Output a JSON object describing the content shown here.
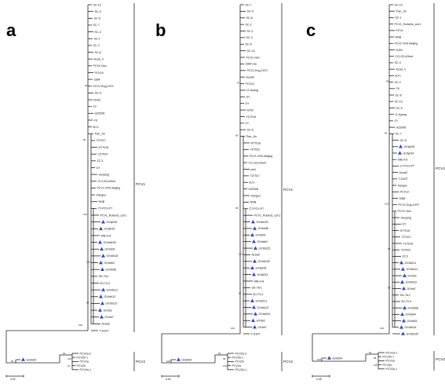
{
  "panels": [
    {
      "label": "a",
      "scale": "0.02",
      "clade_pcv1": "PCV1",
      "clade_pcv2": "PCV2",
      "leaves": [
        {
          "t": "SC-10",
          "m": false
        },
        {
          "t": "SC-9",
          "m": false
        },
        {
          "t": "SC-8",
          "m": false
        },
        {
          "t": "SC-7",
          "m": false
        },
        {
          "t": "SC-3",
          "m": false
        },
        {
          "t": "SC-1",
          "m": false
        },
        {
          "t": "SC-2",
          "m": false
        },
        {
          "t": "SC-6",
          "m": false
        },
        {
          "t": "Azad_4",
          "m": false
        },
        {
          "t": "PCV1-Hun",
          "m": false
        },
        {
          "t": "PCV10",
          "m": false
        },
        {
          "t": "3384",
          "m": false
        },
        {
          "t": "PCV1-Eng-1970",
          "m": false
        },
        {
          "t": "SC-5",
          "m": false
        },
        {
          "t": "NJ03",
          "m": false
        },
        {
          "t": "ZY",
          "m": false
        },
        {
          "t": "HZ2008",
          "m": false
        },
        {
          "t": "FK",
          "m": false
        },
        {
          "t": "BJ-1",
          "m": false
        },
        {
          "t": "Tian_Jin",
          "m": false
        },
        {
          "t": "TZ7017",
          "m": false
        },
        {
          "t": "NT7016",
          "m": false
        },
        {
          "t": "YZ7020",
          "m": false
        },
        {
          "t": "ZZ-3",
          "m": false
        },
        {
          "t": "DY",
          "m": false
        },
        {
          "t": "Guiyang",
          "m": false
        },
        {
          "t": "CCL33-UGent",
          "m": false
        },
        {
          "t": "PCV1-XFD-Beijing",
          "m": false
        },
        {
          "t": "Jiangsu",
          "m": false
        },
        {
          "t": "NNB",
          "m": false
        },
        {
          "t": "CT-PCV-P7",
          "m": false
        },
        {
          "t": "PCV1_Roberts_con1",
          "m": false
        },
        {
          "t": "GXly028",
          "m": true
        },
        {
          "t": "GXly034",
          "m": true
        },
        {
          "t": "WB-H-8",
          "m": false
        },
        {
          "t": "GXbbt105",
          "m": true
        },
        {
          "t": "GXbb01",
          "m": true
        },
        {
          "t": "GXbb115",
          "m": true
        },
        {
          "t": "GXbb64",
          "m": true
        },
        {
          "t": "GXbb58",
          "m": true
        },
        {
          "t": "SD-78-1",
          "m": false
        },
        {
          "t": "BJ-73-3",
          "m": false
        },
        {
          "t": "GXbb111",
          "m": true
        },
        {
          "t": "GXbb112",
          "m": true
        },
        {
          "t": "GXbb110",
          "m": true
        },
        {
          "t": "GXbb2",
          "m": true
        },
        {
          "t": "GXbb7",
          "m": true
        },
        {
          "t": "Azad3",
          "m": false
        },
        {
          "t": "TJ1307",
          "m": false
        }
      ],
      "outgroup": [
        {
          "t": "Gxbb54",
          "m": true
        },
        {
          "t": "PCV2a-2",
          "m": false
        },
        {
          "t": "PCV2b-1",
          "m": false
        },
        {
          "t": "PCV2a",
          "m": false
        },
        {
          "t": "PCV2b",
          "m": false
        },
        {
          "t": "PCV2a-1",
          "m": false
        }
      ],
      "bootstrap": [
        "100",
        "96",
        "100",
        "100",
        "98",
        "99",
        "93",
        "91",
        "100",
        "97"
      ]
    },
    {
      "label": "b",
      "scale": "0.01",
      "clade_pcv1": "PCV1",
      "clade_pcv2": "PCV2",
      "leaves": [
        {
          "t": "SC-7",
          "m": false
        },
        {
          "t": "SC-9",
          "m": false
        },
        {
          "t": "SC-8",
          "m": false
        },
        {
          "t": "SC-2",
          "m": false
        },
        {
          "t": "SC-1",
          "m": false
        },
        {
          "t": "SC-3",
          "m": false
        },
        {
          "t": "SC-6",
          "m": false
        },
        {
          "t": "SC-10",
          "m": false
        },
        {
          "t": "PCV1-Hun",
          "m": false
        },
        {
          "t": "3384-vac",
          "m": false
        },
        {
          "t": "PCV1-Eng-1970",
          "m": false
        },
        {
          "t": "Azad4",
          "m": false
        },
        {
          "t": "PCV10",
          "m": false
        },
        {
          "t": "G-Jiyang",
          "m": false
        },
        {
          "t": "GY",
          "m": false
        },
        {
          "t": "DY",
          "m": false
        },
        {
          "t": "NJ03",
          "m": false
        },
        {
          "t": "YZ7016",
          "m": false
        },
        {
          "t": "ZY",
          "m": false
        },
        {
          "t": "SC-5",
          "m": false
        },
        {
          "t": "Tian_Jin",
          "m": false
        },
        {
          "t": "NT7016",
          "m": false
        },
        {
          "t": "YZ7022",
          "m": false
        },
        {
          "t": "PCV1-XFD-Beijing",
          "m": false
        },
        {
          "t": "CCL33-UGent",
          "m": false
        },
        {
          "t": "pcvl",
          "m": false
        },
        {
          "t": "TZ7017",
          "m": false
        },
        {
          "t": "BJ-1",
          "m": false
        },
        {
          "t": "HZ2008",
          "m": false
        },
        {
          "t": "Jiangsu",
          "m": false
        },
        {
          "t": "NNB",
          "m": false
        },
        {
          "t": "CT-PCV-P7",
          "m": false
        },
        {
          "t": "PCV1_Roberts_con1",
          "m": false
        },
        {
          "t": "GXbb100",
          "m": true
        },
        {
          "t": "GXbb58",
          "m": true
        },
        {
          "t": "GXbb01",
          "m": true
        },
        {
          "t": "GXbb64",
          "m": true
        },
        {
          "t": "GXbb115",
          "m": true
        },
        {
          "t": "Azad3",
          "m": false
        },
        {
          "t": "GXbb105",
          "m": true
        },
        {
          "t": "GXly028",
          "m": true
        },
        {
          "t": "GXly034",
          "m": true
        },
        {
          "t": "WB-H-8",
          "m": false
        },
        {
          "t": "SD-78-1",
          "m": false
        },
        {
          "t": "BJ-73-3",
          "m": false
        },
        {
          "t": "GXbb111",
          "m": true
        },
        {
          "t": "GXbb112",
          "m": true
        },
        {
          "t": "GXbb110",
          "m": true
        },
        {
          "t": "GXbb2",
          "m": true
        },
        {
          "t": "GXbb7",
          "m": true
        },
        {
          "t": "TJ1307",
          "m": false
        }
      ],
      "outgroup": [
        {
          "t": "Gxbb54",
          "m": true
        },
        {
          "t": "PCV2a-2",
          "m": false
        },
        {
          "t": "PCV2b-1",
          "m": false
        },
        {
          "t": "PCV2b",
          "m": false
        },
        {
          "t": "PCV2a",
          "m": false
        },
        {
          "t": "PCV2a-1",
          "m": false
        }
      ],
      "bootstrap": [
        "100",
        "99",
        "95",
        "100",
        "92",
        "87",
        "100",
        "93",
        "99",
        "100"
      ]
    },
    {
      "label": "c",
      "scale": "0.05",
      "clade_pcv1": "PCV1",
      "clade_pcv2": "PCV2",
      "leaves": [
        {
          "t": "SC-10",
          "m": false
        },
        {
          "t": "Tian_Jin",
          "m": false
        },
        {
          "t": "SC-1",
          "m": false
        },
        {
          "t": "PCV1_Roberts_con1",
          "m": false
        },
        {
          "t": "PCV1",
          "m": false
        },
        {
          "t": "NNB",
          "m": false
        },
        {
          "t": "PCV1-XFD-Beijing",
          "m": false
        },
        {
          "t": "NJ03",
          "m": false
        },
        {
          "t": "CCL33-UGent",
          "m": false
        },
        {
          "t": "SC-3",
          "m": false
        },
        {
          "t": "Azad_4",
          "m": false
        },
        {
          "t": "BJ-1",
          "m": false
        },
        {
          "t": "SC-2",
          "m": false
        },
        {
          "t": "FK",
          "m": false
        },
        {
          "t": "SC-6",
          "m": false
        },
        {
          "t": "SC-10",
          "m": false
        },
        {
          "t": "SC-9",
          "m": false
        },
        {
          "t": "G-Jiyang",
          "m": false
        },
        {
          "t": "ZY",
          "m": false
        },
        {
          "t": "HZ2008",
          "m": false
        },
        {
          "t": "SC-7",
          "m": false
        },
        {
          "t": "SC-8",
          "m": false
        },
        {
          "t": "GXly028",
          "m": true
        },
        {
          "t": "GXly034",
          "m": true
        },
        {
          "t": "WB-H-8",
          "m": false
        },
        {
          "t": "CT-PCV-P7",
          "m": false
        },
        {
          "t": "Azad3",
          "m": false
        },
        {
          "t": "TJ1307",
          "m": false
        },
        {
          "t": "Jiangsu",
          "m": false
        },
        {
          "t": "PCV10",
          "m": false
        },
        {
          "t": "3384",
          "m": false
        },
        {
          "t": "PCV1-Eng-1970",
          "m": false
        },
        {
          "t": "PCV1-Hun",
          "m": false
        },
        {
          "t": "Guiyang",
          "m": false
        },
        {
          "t": "DY",
          "m": false
        },
        {
          "t": "NT7016",
          "m": false
        },
        {
          "t": "TZ7017",
          "m": false
        },
        {
          "t": "YZ7016",
          "m": false
        },
        {
          "t": "YZ7022",
          "m": false
        },
        {
          "t": "ZZ-3",
          "m": false
        },
        {
          "t": "GXbb111",
          "m": true
        },
        {
          "t": "GXbb112",
          "m": true
        },
        {
          "t": "GXbb2",
          "m": true
        },
        {
          "t": "GXbb110",
          "m": true
        },
        {
          "t": "GXbb7",
          "m": true
        },
        {
          "t": "SD-78-1",
          "m": false
        },
        {
          "t": "BJ-73-3",
          "m": false
        },
        {
          "t": "GXbb58",
          "m": true
        },
        {
          "t": "GXbb64",
          "m": true
        },
        {
          "t": "GXbb01",
          "m": true
        },
        {
          "t": "GXbb115",
          "m": true
        },
        {
          "t": "GXbb105",
          "m": true
        }
      ],
      "outgroup": [
        {
          "t": "Gxbb54",
          "m": true
        },
        {
          "t": "PCV2a-2",
          "m": false
        },
        {
          "t": "PCV2b-1",
          "m": false
        },
        {
          "t": "PCV2a",
          "m": false
        },
        {
          "t": "PCV2b",
          "m": false
        },
        {
          "t": "PCV2a-1",
          "m": false
        }
      ],
      "bootstrap": [
        "100",
        "98",
        "100",
        "97",
        "94",
        "99",
        "100",
        "91",
        "88",
        "100"
      ]
    }
  ]
}
